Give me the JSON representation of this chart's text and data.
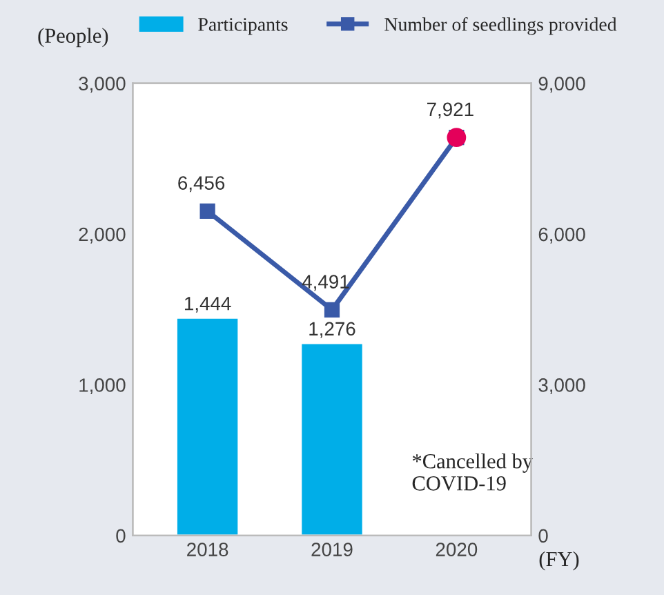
{
  "chart_data": {
    "type": "bar",
    "categories": [
      "2018",
      "2019",
      "2020"
    ],
    "xlabel": "(FY)",
    "ylabel": "(People)",
    "legend": "top",
    "series": [
      {
        "name": "Participants",
        "color": "#00aee8",
        "values": [
          1444,
          1276,
          null
        ],
        "value_labels": [
          "1,444",
          "1,276",
          null
        ]
      },
      {
        "name": "Number of seedlings provided",
        "type": "line",
        "axis": "y2",
        "color": "#3a5aa8",
        "marker": "square",
        "values": [
          6456,
          4491,
          7921
        ],
        "value_labels": [
          "6,456",
          "4,491",
          "7,921"
        ]
      },
      {
        "type": "scatter",
        "axis": "y2",
        "color": "#e4005a",
        "marker": "circle",
        "values": [
          null,
          null,
          7921
        ]
      }
    ],
    "ylim": [
      0,
      3000
    ],
    "yticks": [
      0,
      {
        "value": 1000,
        "label": "1,000"
      },
      {
        "value": 2000,
        "label": "2,000"
      },
      {
        "value": 3000,
        "label": "3,000"
      }
    ],
    "y2lim": [
      0,
      9000
    ],
    "y2ticks": [
      0,
      {
        "value": 3000,
        "label": "3,000"
      },
      {
        "value": 6000,
        "label": "6,000"
      },
      {
        "value": 9000,
        "label": "9,000"
      }
    ],
    "annotations": [
      "*Cancelled by\nCOVID-19"
    ]
  }
}
